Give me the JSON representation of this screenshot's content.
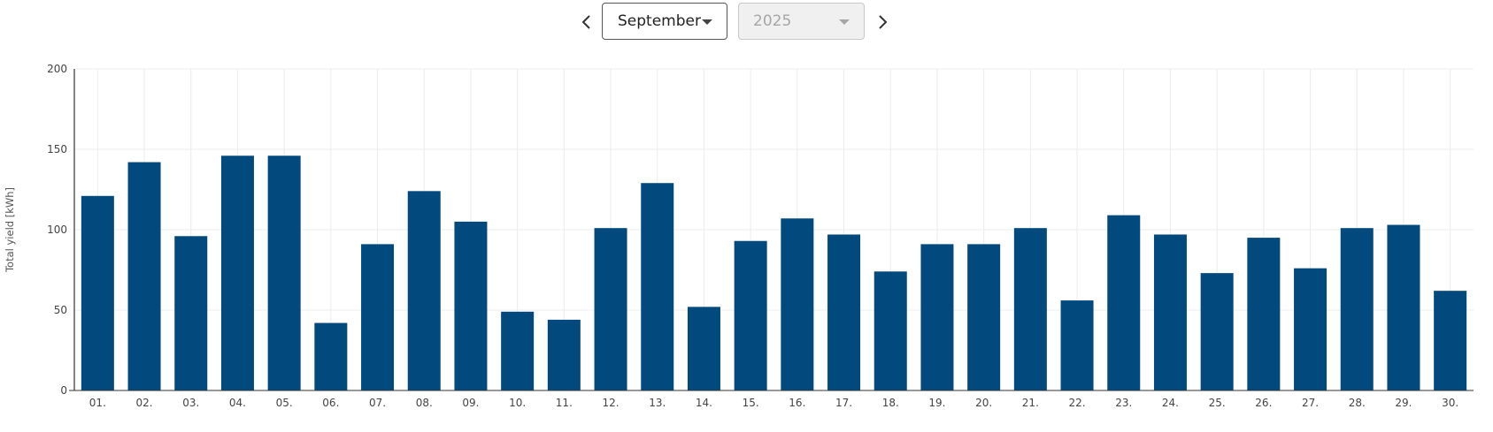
{
  "controls": {
    "month": "September",
    "year": "2025"
  },
  "icons": {
    "prev": "chevron-left-icon",
    "next": "chevron-right-icon",
    "dropdown": "caret-down-icon"
  },
  "colors": {
    "bar": "#02497D",
    "grid": "#ECECEC",
    "axis": "#333333"
  },
  "chart_data": {
    "type": "bar",
    "ylabel": "Total yield [kWh]",
    "xlabel": "",
    "ylim": [
      0,
      200
    ],
    "yticks": [
      0,
      50,
      100,
      150,
      200
    ],
    "grid": true,
    "categories": [
      "01.",
      "02.",
      "03.",
      "04.",
      "05.",
      "06.",
      "07.",
      "08.",
      "09.",
      "10.",
      "11.",
      "12.",
      "13.",
      "14.",
      "15.",
      "16.",
      "17.",
      "18.",
      "19.",
      "20.",
      "21.",
      "22.",
      "23.",
      "24.",
      "25.",
      "26.",
      "27.",
      "28.",
      "29.",
      "30."
    ],
    "values": [
      121,
      142,
      96,
      146,
      146,
      42,
      91,
      124,
      105,
      49,
      44,
      101,
      129,
      52,
      93,
      107,
      97,
      74,
      91,
      91,
      101,
      56,
      109,
      97,
      73,
      95,
      76,
      101,
      103,
      62
    ]
  }
}
